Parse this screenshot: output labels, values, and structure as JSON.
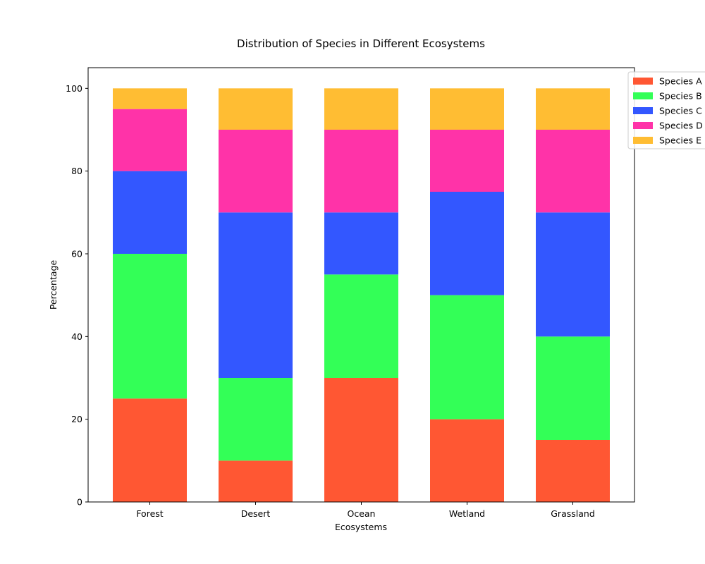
{
  "chart_data": {
    "type": "bar",
    "stacked": true,
    "title": "Distribution of Species in Different Ecosystems",
    "xlabel": "Ecosystems",
    "ylabel": "Percentage",
    "categories": [
      "Forest",
      "Desert",
      "Ocean",
      "Wetland",
      "Grassland"
    ],
    "ylim": [
      0,
      105
    ],
    "yticks": [
      0,
      20,
      40,
      60,
      80,
      100
    ],
    "grid": false,
    "legend_position": "top-right",
    "series": [
      {
        "name": "Species A",
        "color": "#ff5733",
        "values": [
          25,
          10,
          30,
          20,
          15
        ]
      },
      {
        "name": "Species B",
        "color": "#33ff57",
        "values": [
          35,
          20,
          25,
          30,
          25
        ]
      },
      {
        "name": "Species C",
        "color": "#3357ff",
        "values": [
          20,
          40,
          15,
          25,
          30
        ]
      },
      {
        "name": "Species D",
        "color": "#ff33a8",
        "values": [
          15,
          20,
          20,
          15,
          20
        ]
      },
      {
        "name": "Species E",
        "color": "#ffbd33",
        "values": [
          5,
          10,
          10,
          10,
          10
        ]
      }
    ]
  }
}
